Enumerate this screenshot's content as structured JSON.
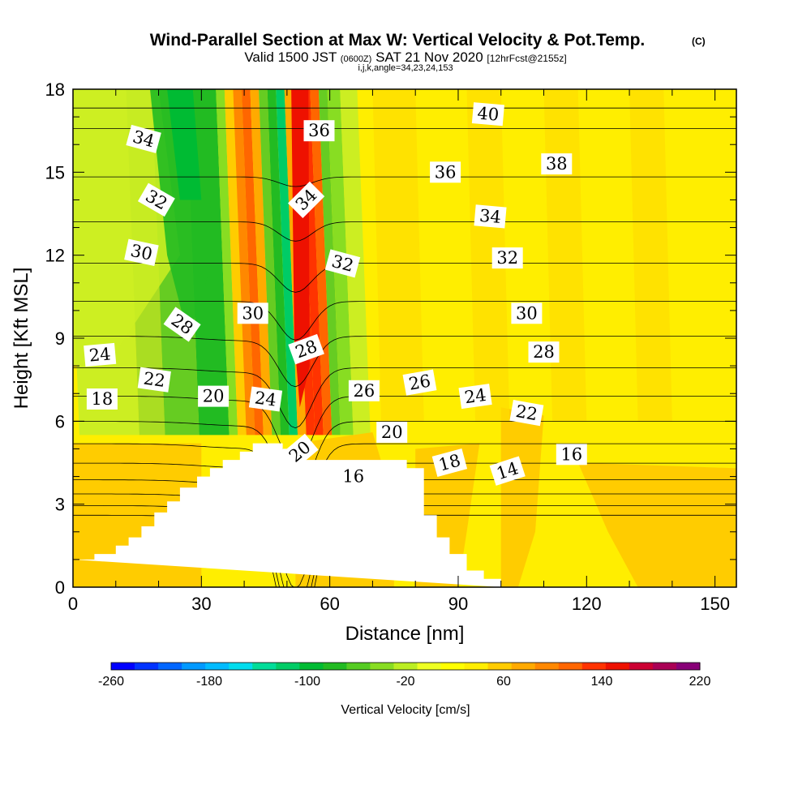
{
  "chart_data": {
    "type": "heatmap",
    "title": "Wind-Parallel Section at Max W: Vertical Velocity & Pot.Temp.",
    "title_mark": "(C)",
    "subtitle": {
      "valid": "Valid 1500 JST",
      "utc": "(0600Z)",
      "date": "SAT 21 Nov 2020",
      "fcst": "[12hrFcst@2155z]",
      "indices": "i,j,k,angle=34,23,24,153"
    },
    "xlabel": "Distance [nm]",
    "ylabel": "Height [Kft MSL]",
    "xlim": [
      0,
      155
    ],
    "ylim": [
      0,
      18
    ],
    "xticks": [
      "0",
      "30",
      "60",
      "90",
      "120",
      "150"
    ],
    "yticks": [
      "0",
      "3",
      "6",
      "9",
      "12",
      "15",
      "18"
    ],
    "colorbar": {
      "label": "Vertical Velocity [cm/s]",
      "min": -260,
      "max": 220,
      "step": 20,
      "tick_labels": [
        "-260",
        "-180",
        "-100",
        "-20",
        "60",
        "140",
        "220"
      ],
      "colors": [
        "#0000ff",
        "#0033ff",
        "#0066ff",
        "#0099ff",
        "#00bbff",
        "#00ddee",
        "#00dd99",
        "#00cc66",
        "#00bb33",
        "#22bb22",
        "#55cc22",
        "#88dd22",
        "#bbee22",
        "#eeff22",
        "#ffff00",
        "#ffee00",
        "#ffcc00",
        "#ffaa00",
        "#ff8800",
        "#ff6600",
        "#ff3300",
        "#ee1100",
        "#cc0033",
        "#aa0055",
        "#880077"
      ]
    },
    "terrain": [
      [
        0,
        1.0
      ],
      [
        5,
        1.0
      ],
      [
        5,
        1.2
      ],
      [
        10,
        1.2
      ],
      [
        10,
        1.5
      ],
      [
        13,
        1.5
      ],
      [
        13,
        1.8
      ],
      [
        16,
        1.8
      ],
      [
        16,
        2.2
      ],
      [
        19,
        2.2
      ],
      [
        19,
        2.7
      ],
      [
        22,
        2.7
      ],
      [
        22,
        3.1
      ],
      [
        25,
        3.1
      ],
      [
        25,
        3.6
      ],
      [
        29,
        3.6
      ],
      [
        29,
        4.0
      ],
      [
        32,
        4.0
      ],
      [
        32,
        4.3
      ],
      [
        35,
        4.3
      ],
      [
        35,
        4.6
      ],
      [
        39,
        4.6
      ],
      [
        39,
        4.9
      ],
      [
        42,
        4.9
      ],
      [
        42,
        5.2
      ],
      [
        49,
        5.2
      ],
      [
        49,
        5.0
      ],
      [
        52,
        5.0
      ],
      [
        52,
        4.6
      ],
      [
        78,
        4.6
      ],
      [
        78,
        4.3
      ],
      [
        82,
        4.3
      ],
      [
        82,
        2.6
      ],
      [
        85,
        2.6
      ],
      [
        85,
        1.8
      ],
      [
        88,
        1.8
      ],
      [
        88,
        1.2
      ],
      [
        92,
        1.2
      ],
      [
        92,
        0.6
      ],
      [
        96,
        0.6
      ],
      [
        96,
        0.3
      ],
      [
        100,
        0.3
      ],
      [
        100,
        0
      ]
    ],
    "updraft_core": {
      "x": 53.5,
      "peak_cm_s": 180
    },
    "isentropes_K_offset": [
      14,
      16,
      18,
      20,
      22,
      24,
      26,
      28,
      30,
      32,
      34,
      36,
      38,
      40
    ],
    "contour_labels": [
      {
        "text": "34",
        "x": 16.5,
        "y": 16.2,
        "angle": 15
      },
      {
        "text": "32",
        "x": 19.5,
        "y": 14.0,
        "angle": 30
      },
      {
        "text": "30",
        "x": 16.0,
        "y": 12.1,
        "angle": 12
      },
      {
        "text": "28",
        "x": 25.5,
        "y": 9.5,
        "angle": 35
      },
      {
        "text": "24",
        "x": 6.3,
        "y": 8.4,
        "angle": -5
      },
      {
        "text": "22",
        "x": 19.0,
        "y": 7.5,
        "angle": 8
      },
      {
        "text": "18",
        "x": 6.8,
        "y": 6.8,
        "angle": 0
      },
      {
        "text": "20",
        "x": 32.8,
        "y": 6.9,
        "angle": 0
      },
      {
        "text": "24",
        "x": 45.0,
        "y": 6.8,
        "angle": 8
      },
      {
        "text": "20",
        "x": 53.0,
        "y": 4.9,
        "angle": -40
      },
      {
        "text": "30",
        "x": 42.0,
        "y": 9.9,
        "angle": 0
      },
      {
        "text": "28",
        "x": 54.5,
        "y": 8.6,
        "angle": -20
      },
      {
        "text": "34",
        "x": 54.5,
        "y": 14.0,
        "angle": -45
      },
      {
        "text": "36",
        "x": 57.5,
        "y": 16.5,
        "angle": 0
      },
      {
        "text": "32",
        "x": 63.0,
        "y": 11.7,
        "angle": 15
      },
      {
        "text": "26",
        "x": 68.0,
        "y": 7.1,
        "angle": 0
      },
      {
        "text": "26",
        "x": 81.0,
        "y": 7.4,
        "angle": -10
      },
      {
        "text": "20",
        "x": 74.5,
        "y": 5.6,
        "angle": 0
      },
      {
        "text": "16",
        "x": 65.5,
        "y": 4.0,
        "angle": 0
      },
      {
        "text": "18",
        "x": 88.0,
        "y": 4.5,
        "angle": -15
      },
      {
        "text": "14",
        "x": 101.5,
        "y": 4.2,
        "angle": -18
      },
      {
        "text": "40",
        "x": 97.0,
        "y": 17.1,
        "angle": 5
      },
      {
        "text": "36",
        "x": 87.0,
        "y": 15.0,
        "angle": 0
      },
      {
        "text": "38",
        "x": 113.0,
        "y": 15.3,
        "angle": 0
      },
      {
        "text": "34",
        "x": 97.5,
        "y": 13.4,
        "angle": 5
      },
      {
        "text": "32",
        "x": 101.5,
        "y": 11.9,
        "angle": 0
      },
      {
        "text": "30",
        "x": 106.0,
        "y": 9.9,
        "angle": 0
      },
      {
        "text": "28",
        "x": 110.0,
        "y": 8.5,
        "angle": 0
      },
      {
        "text": "24",
        "x": 94.0,
        "y": 6.9,
        "angle": -8
      },
      {
        "text": "22",
        "x": 106.0,
        "y": 6.3,
        "angle": 10
      },
      {
        "text": "16",
        "x": 116.5,
        "y": 4.8,
        "angle": 0
      }
    ]
  }
}
